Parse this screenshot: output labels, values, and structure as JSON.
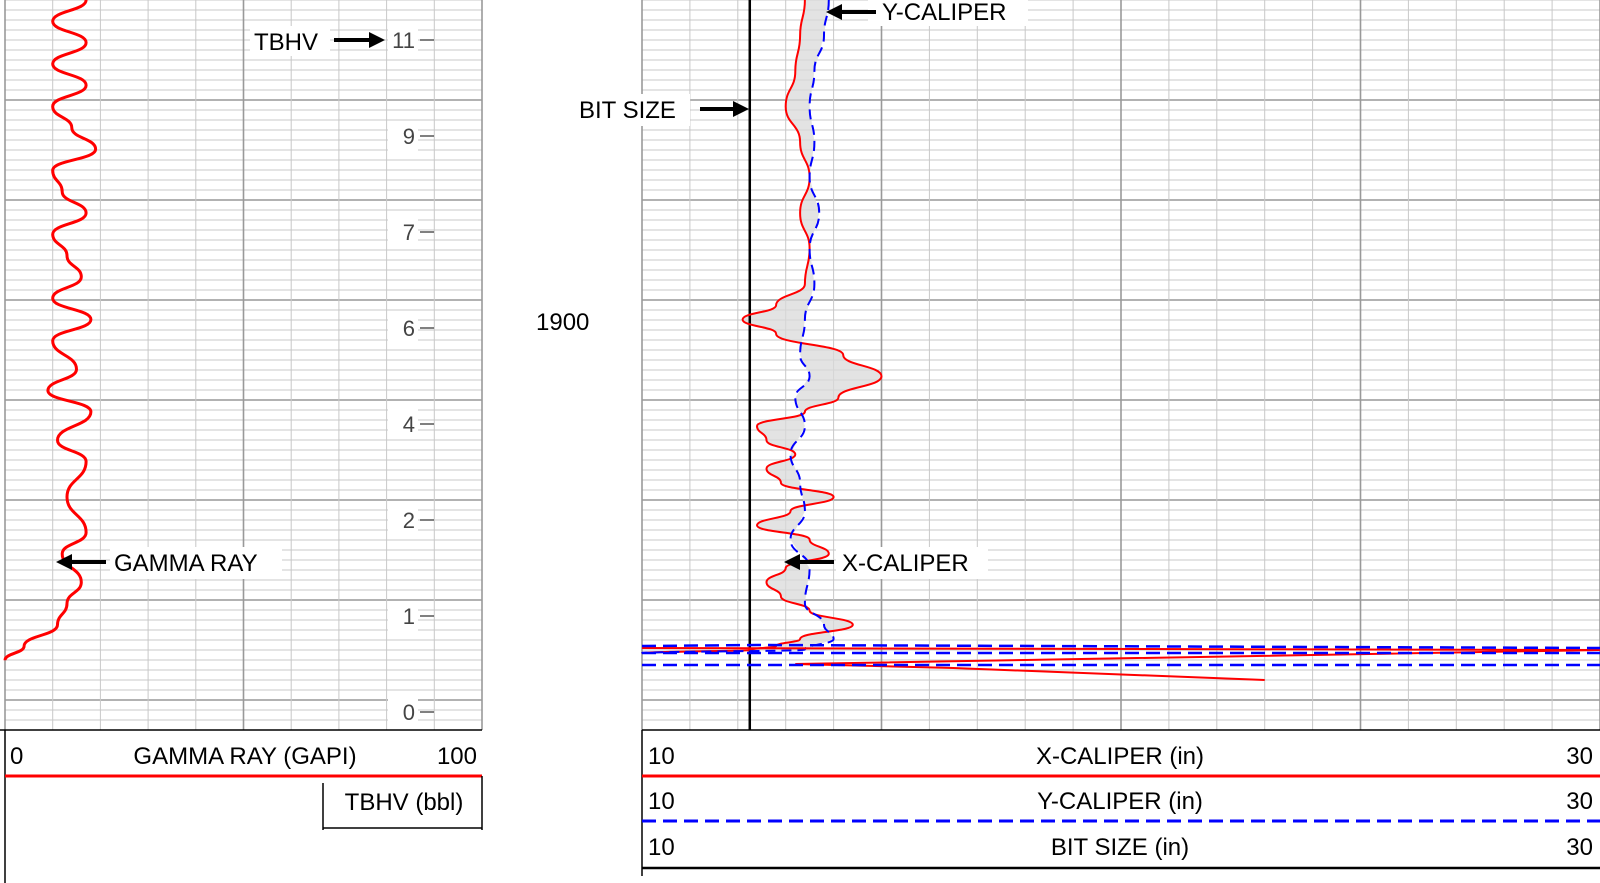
{
  "chart_data": [
    {
      "type": "line",
      "track": "left",
      "series": [
        {
          "name": "GAMMA RAY",
          "color": "#ff0000"
        }
      ],
      "x_axis": {
        "label": "GAMMA RAY (GAPI)",
        "min": 0,
        "max": 100,
        "min_label": "0",
        "max_label": "100"
      },
      "secondary_axis": {
        "label": "TBHV (bbl)"
      },
      "tbhv_scale": {
        "ticks": [
          0,
          1,
          2,
          4,
          6,
          7,
          9,
          11
        ],
        "labels": [
          "0",
          "1",
          "2",
          "4",
          "6",
          "7",
          "9",
          "11"
        ]
      },
      "annotations": [
        {
          "text": "TBHV",
          "target": "11",
          "arrow": "right"
        },
        {
          "text": "GAMMA RAY",
          "target": "curve",
          "arrow": "left"
        }
      ],
      "gamma_ray_profile": [
        [
          0,
          17
        ],
        [
          0.03,
          10
        ],
        [
          0.06,
          17
        ],
        [
          0.09,
          10
        ],
        [
          0.12,
          17
        ],
        [
          0.15,
          10
        ],
        [
          0.18,
          14
        ],
        [
          0.21,
          19
        ],
        [
          0.24,
          10
        ],
        [
          0.27,
          12
        ],
        [
          0.3,
          17
        ],
        [
          0.33,
          10
        ],
        [
          0.36,
          13
        ],
        [
          0.39,
          16
        ],
        [
          0.42,
          10
        ],
        [
          0.45,
          18
        ],
        [
          0.48,
          10
        ],
        [
          0.52,
          15
        ],
        [
          0.55,
          9
        ],
        [
          0.58,
          18
        ],
        [
          0.62,
          11
        ],
        [
          0.65,
          17
        ],
        [
          0.7,
          13
        ],
        [
          0.75,
          17
        ],
        [
          0.78,
          12
        ],
        [
          0.82,
          16
        ],
        [
          0.85,
          13
        ],
        [
          0.88,
          11
        ],
        [
          0.91,
          4
        ],
        [
          0.93,
          0
        ]
      ]
    },
    {
      "type": "line",
      "track": "right",
      "depth_label": "1900",
      "series": [
        {
          "name": "X-CALIPER",
          "color": "#ff0000",
          "style": "solid"
        },
        {
          "name": "Y-CALIPER",
          "color": "#0000ff",
          "style": "dashed"
        },
        {
          "name": "BIT SIZE",
          "color": "#000000",
          "style": "solid"
        }
      ],
      "axes": [
        {
          "label": "X-CALIPER (in)",
          "min": 10,
          "max": 30,
          "min_label": "10",
          "max_label": "30"
        },
        {
          "label": "Y-CALIPER (in)",
          "min": 10,
          "max": 30,
          "min_label": "10",
          "max_label": "30"
        },
        {
          "label": "BIT SIZE (in)",
          "min": 10,
          "max": 30,
          "min_label": "10",
          "max_label": "30"
        }
      ],
      "bit_size": 12.25,
      "annotations": [
        {
          "text": "Y-CALIPER",
          "target": "Y-CALIPER",
          "arrow": "left"
        },
        {
          "text": "BIT SIZE",
          "target": "BIT SIZE",
          "arrow": "right"
        },
        {
          "text": "X-CALIPER",
          "target": "X-CALIPER",
          "arrow": "left"
        }
      ],
      "x_caliper_profile": [
        [
          0,
          13.4
        ],
        [
          0.05,
          13.3
        ],
        [
          0.1,
          13.2
        ],
        [
          0.15,
          13.0
        ],
        [
          0.2,
          13.3
        ],
        [
          0.25,
          13.5
        ],
        [
          0.3,
          13.3
        ],
        [
          0.35,
          13.5
        ],
        [
          0.4,
          13.4
        ],
        [
          0.43,
          12.8
        ],
        [
          0.45,
          12.1
        ],
        [
          0.47,
          12.8
        ],
        [
          0.5,
          14.2
        ],
        [
          0.53,
          15.0
        ],
        [
          0.56,
          14.1
        ],
        [
          0.58,
          13.4
        ],
        [
          0.6,
          12.4
        ],
        [
          0.62,
          12.6
        ],
        [
          0.64,
          13.2
        ],
        [
          0.66,
          12.6
        ],
        [
          0.68,
          12.9
        ],
        [
          0.7,
          14.0
        ],
        [
          0.72,
          13.1
        ],
        [
          0.74,
          12.4
        ],
        [
          0.76,
          13.5
        ],
        [
          0.78,
          13.9
        ],
        [
          0.8,
          13.0
        ],
        [
          0.82,
          12.6
        ],
        [
          0.84,
          12.9
        ],
        [
          0.86,
          13.5
        ],
        [
          0.88,
          14.4
        ],
        [
          0.9,
          13.3
        ],
        [
          0.91,
          12.8
        ],
        [
          0.915,
          12.3
        ],
        [
          0.92,
          10.0
        ]
      ],
      "y_caliper_profile": [
        [
          0,
          13.9
        ],
        [
          0.05,
          13.8
        ],
        [
          0.1,
          13.6
        ],
        [
          0.15,
          13.5
        ],
        [
          0.2,
          13.6
        ],
        [
          0.25,
          13.5
        ],
        [
          0.3,
          13.7
        ],
        [
          0.35,
          13.5
        ],
        [
          0.4,
          13.6
        ],
        [
          0.45,
          13.4
        ],
        [
          0.5,
          13.3
        ],
        [
          0.53,
          13.5
        ],
        [
          0.56,
          13.2
        ],
        [
          0.6,
          13.4
        ],
        [
          0.64,
          13.1
        ],
        [
          0.68,
          13.3
        ],
        [
          0.72,
          13.4
        ],
        [
          0.76,
          13.1
        ],
        [
          0.8,
          13.5
        ],
        [
          0.85,
          13.4
        ],
        [
          0.88,
          13.8
        ],
        [
          0.9,
          14.0
        ],
        [
          0.915,
          13.4
        ],
        [
          0.92,
          10.0
        ]
      ],
      "bottom_red": [
        [
          0.0,
          12.0
        ],
        [
          0.55,
          31.0
        ],
        [
          0.47,
          38.5
        ],
        [
          0.5,
          48.0
        ]
      ],
      "bottom_blue": [
        [
          0.0,
          12.4
        ],
        [
          0.55,
          31.0
        ],
        [
          0.5,
          46.0
        ]
      ]
    }
  ]
}
